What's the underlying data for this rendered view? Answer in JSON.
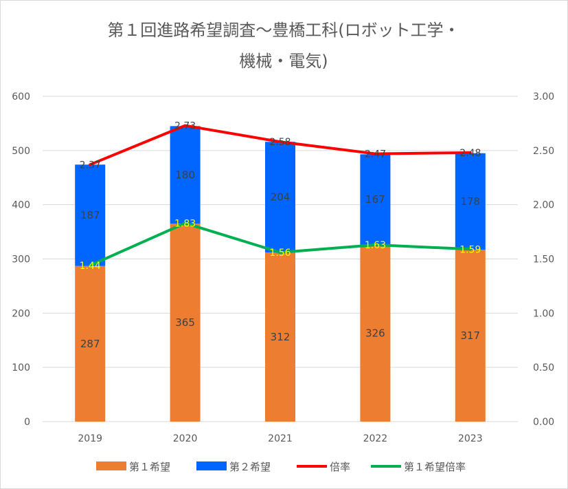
{
  "chart_data": {
    "type": "bar",
    "title_lines": [
      "第１回進路希望調査～豊橋工科(ロボット工学・",
      "機械・電気)"
    ],
    "categories": [
      "2019",
      "2020",
      "2021",
      "2022",
      "2023"
    ],
    "series": [
      {
        "name": "第１希望",
        "kind": "bar",
        "axis": "left",
        "color": "#ed7d31",
        "values": [
          287,
          365,
          312,
          326,
          317
        ]
      },
      {
        "name": "第２希望",
        "kind": "bar",
        "axis": "left",
        "color": "#0066ff",
        "values": [
          187,
          180,
          204,
          167,
          178
        ]
      },
      {
        "name": "倍率",
        "kind": "line",
        "axis": "right",
        "color": "#ff0000",
        "values": [
          2.37,
          2.73,
          2.58,
          2.47,
          2.48
        ]
      },
      {
        "name": "第１希望倍率",
        "kind": "line",
        "axis": "right",
        "color": "#00b050",
        "values": [
          1.44,
          1.83,
          1.56,
          1.63,
          1.59
        ]
      }
    ],
    "stacked": true,
    "y_left": {
      "min": 0,
      "max": 600,
      "step": 100,
      "ticks": [
        "0",
        "100",
        "200",
        "300",
        "400",
        "500",
        "600"
      ]
    },
    "y_right": {
      "min": 0,
      "max": 3,
      "step": 0.5,
      "ticks": [
        "0.00",
        "0.50",
        "1.00",
        "1.50",
        "2.00",
        "2.50",
        "3.00"
      ]
    },
    "grid": true,
    "legend": "bottom"
  }
}
